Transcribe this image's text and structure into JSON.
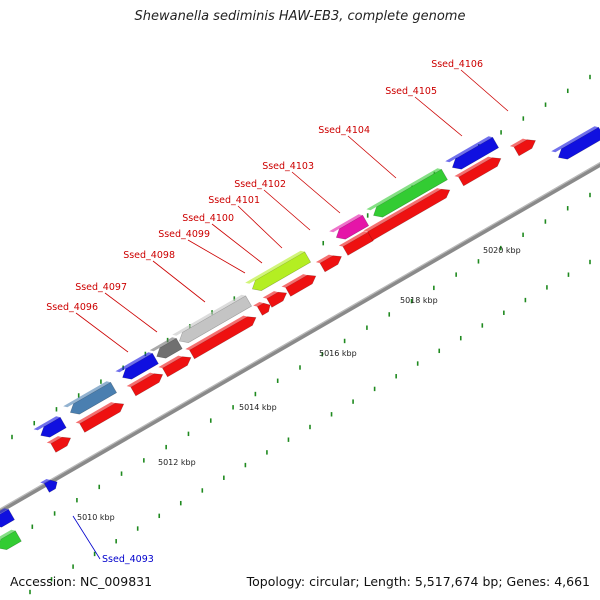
{
  "title": "Shewanella sediminis HAW-EB3, complete genome",
  "footer": {
    "accession": "Accession: NC_009831",
    "topology": "Topology: circular; Length: 5,517,674 bp; Genes: 4,661"
  },
  "colors": {
    "backbone": "#8a8a8a",
    "tick": "#1f8a1f",
    "label_red": "#cc0000",
    "label_blue": "#0000cc"
  },
  "ticks": [
    "5010 kbp",
    "5012 kbp",
    "5014 kbp",
    "5016 kbp",
    "5018 kbp",
    "5020 kbp"
  ],
  "gene_labels": [
    {
      "name": "Ssed_4093",
      "color": "blue"
    },
    {
      "name": "Ssed_4096",
      "color": "red"
    },
    {
      "name": "Ssed_4097",
      "color": "red"
    },
    {
      "name": "Ssed_4098",
      "color": "red"
    },
    {
      "name": "Ssed_4099",
      "color": "red"
    },
    {
      "name": "Ssed_4100",
      "color": "red"
    },
    {
      "name": "Ssed_4101",
      "color": "red"
    },
    {
      "name": "Ssed_4102",
      "color": "red"
    },
    {
      "name": "Ssed_4103",
      "color": "red"
    },
    {
      "name": "Ssed_4104",
      "color": "red"
    },
    {
      "name": "Ssed_4105",
      "color": "red"
    },
    {
      "name": "Ssed_4106",
      "color": "red"
    }
  ],
  "feature_colors": [
    "blue",
    "red",
    "steelblue",
    "darkgray",
    "lightgray",
    "yellowgreen",
    "magenta",
    "green"
  ]
}
